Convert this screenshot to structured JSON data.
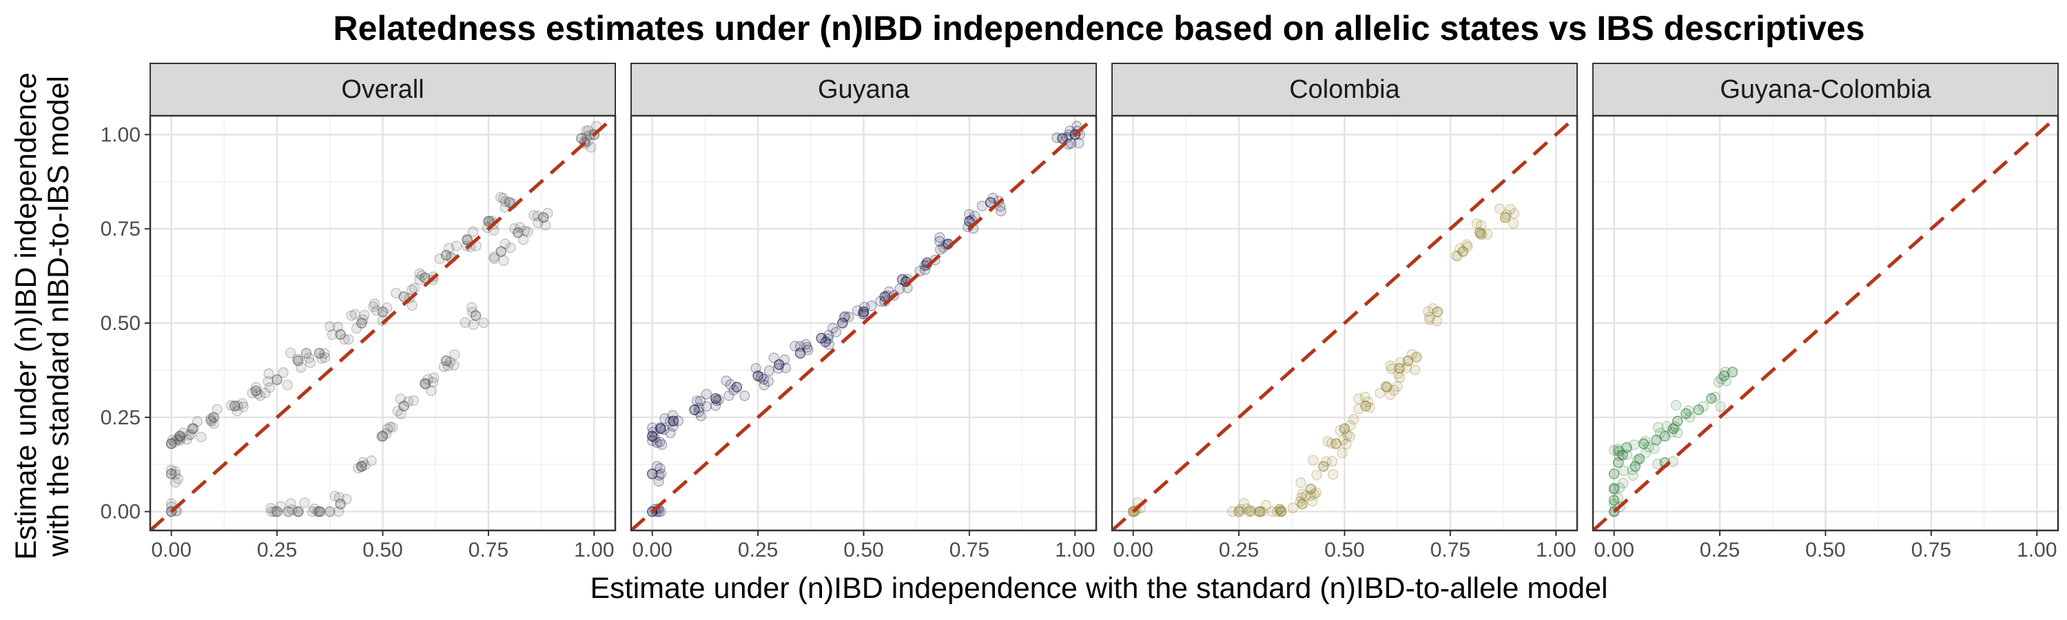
{
  "chart_data": {
    "type": "scatter",
    "title": "Relatedness estimates under (n)IBD independence based on allelic states vs IBS descriptives",
    "xlabel": "Estimate under (n)IBD independence with the standard (n)IBD-to-allele model",
    "ylabel_line1": "Estimate under (n)IBD independence",
    "ylabel_line2": "with the standard nIBD-to-IBS model",
    "xlim": [
      -0.05,
      1.05
    ],
    "ylim": [
      -0.05,
      1.05
    ],
    "x_ticks": [
      "0.00",
      "0.25",
      "0.50",
      "0.75",
      "1.00"
    ],
    "y_ticks": [
      "0.00",
      "0.25",
      "0.50",
      "0.75",
      "1.00"
    ],
    "grid": true,
    "legend": "none",
    "reference_line": {
      "slope": 1,
      "intercept": 0,
      "style": "dashed",
      "color": "#b5361a"
    },
    "panels": [
      {
        "name": "Overall",
        "color": "#555555",
        "approx_points": [
          [
            0,
            0
          ],
          [
            0,
            0.1
          ],
          [
            0,
            0.18
          ],
          [
            0.02,
            0.2
          ],
          [
            0.05,
            0.22
          ],
          [
            0.1,
            0.25
          ],
          [
            0.15,
            0.28
          ],
          [
            0.2,
            0.32
          ],
          [
            0.25,
            0.35
          ],
          [
            0.3,
            0.4
          ],
          [
            0.35,
            0.42
          ],
          [
            0.4,
            0.47
          ],
          [
            0.45,
            0.5
          ],
          [
            0.5,
            0.53
          ],
          [
            0.55,
            0.57
          ],
          [
            0.6,
            0.62
          ],
          [
            0.65,
            0.68
          ],
          [
            0.7,
            0.72
          ],
          [
            0.75,
            0.77
          ],
          [
            0.8,
            0.82
          ],
          [
            0.97,
            0.99
          ],
          [
            1,
            1
          ],
          [
            0.25,
            0
          ],
          [
            0.3,
            0
          ],
          [
            0.35,
            0
          ],
          [
            0.4,
            0.02
          ],
          [
            0.45,
            0.12
          ],
          [
            0.5,
            0.2
          ],
          [
            0.55,
            0.28
          ],
          [
            0.6,
            0.34
          ],
          [
            0.65,
            0.4
          ],
          [
            0.72,
            0.52
          ],
          [
            0.78,
            0.69
          ],
          [
            0.82,
            0.74
          ],
          [
            0.88,
            0.78
          ]
        ]
      },
      {
        "name": "Guyana",
        "color": "#0a0a3c",
        "approx_points": [
          [
            0,
            0
          ],
          [
            0,
            0.1
          ],
          [
            0,
            0.2
          ],
          [
            0.02,
            0.22
          ],
          [
            0.05,
            0.24
          ],
          [
            0.1,
            0.27
          ],
          [
            0.15,
            0.3
          ],
          [
            0.2,
            0.33
          ],
          [
            0.25,
            0.36
          ],
          [
            0.3,
            0.39
          ],
          [
            0.35,
            0.42
          ],
          [
            0.4,
            0.46
          ],
          [
            0.45,
            0.5
          ],
          [
            0.5,
            0.53
          ],
          [
            0.55,
            0.57
          ],
          [
            0.6,
            0.61
          ],
          [
            0.65,
            0.66
          ],
          [
            0.7,
            0.71
          ],
          [
            0.75,
            0.77
          ],
          [
            0.8,
            0.82
          ],
          [
            0.97,
            0.99
          ],
          [
            1,
            1
          ]
        ]
      },
      {
        "name": "Colombia",
        "color": "#8c7a24",
        "approx_points": [
          [
            0,
            0
          ],
          [
            0.25,
            0
          ],
          [
            0.3,
            0
          ],
          [
            0.35,
            0
          ],
          [
            0.4,
            0.02
          ],
          [
            0.42,
            0.06
          ],
          [
            0.45,
            0.12
          ],
          [
            0.48,
            0.18
          ],
          [
            0.5,
            0.22
          ],
          [
            0.55,
            0.28
          ],
          [
            0.6,
            0.33
          ],
          [
            0.63,
            0.38
          ],
          [
            0.65,
            0.4
          ],
          [
            0.72,
            0.53
          ],
          [
            0.78,
            0.69
          ],
          [
            0.82,
            0.74
          ],
          [
            0.88,
            0.78
          ]
        ]
      },
      {
        "name": "Guyana-Colombia",
        "color": "#2e7d3a",
        "approx_points": [
          [
            0,
            0
          ],
          [
            0,
            0.03
          ],
          [
            0,
            0.06
          ],
          [
            0,
            0.1
          ],
          [
            0.01,
            0.13
          ],
          [
            0.02,
            0.15
          ],
          [
            0.03,
            0.17
          ],
          [
            0.05,
            0.12
          ],
          [
            0.06,
            0.14
          ],
          [
            0.07,
            0.18
          ],
          [
            0.1,
            0.19
          ],
          [
            0.12,
            0.2
          ],
          [
            0.12,
            0.13
          ],
          [
            0.14,
            0.22
          ],
          [
            0.15,
            0.24
          ],
          [
            0.17,
            0.26
          ],
          [
            0.2,
            0.27
          ],
          [
            0.23,
            0.3
          ],
          [
            0.26,
            0.36
          ],
          [
            0.28,
            0.37
          ]
        ]
      }
    ]
  }
}
